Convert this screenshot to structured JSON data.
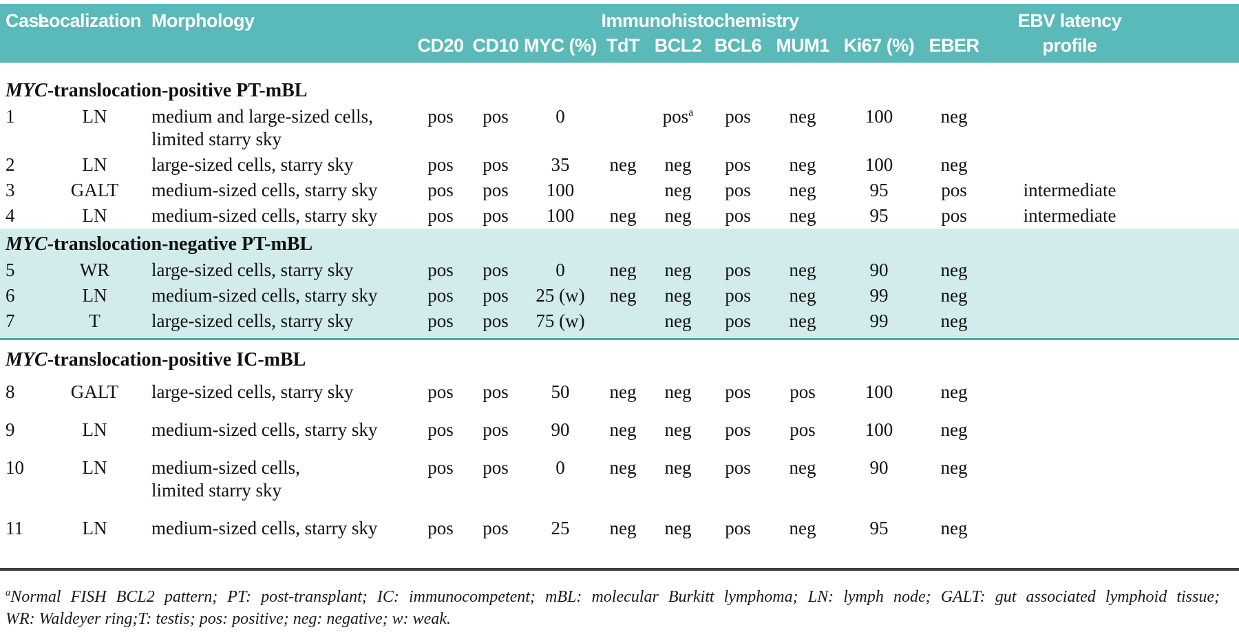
{
  "colors": {
    "header_teal": "#5ab9b9",
    "highlight_band": "#d2ebeb",
    "highlight_border": "#4aacac",
    "bottom_rule": "#3d3d3d",
    "text": "#111111",
    "header_text": "#ffffff"
  },
  "table": {
    "header": {
      "case": "Case",
      "localization": "Localization",
      "morphology": "Morphology",
      "ihc_group": "Immunohistochemistry",
      "ihc_columns": [
        "CD20",
        "CD10",
        "MYC (%)",
        "TdT",
        "BCL2",
        "BCL6",
        "MUM1",
        "Ki67 (%)",
        "EBER"
      ],
      "ebv_line1": "EBV latency",
      "ebv_line2": "profile"
    },
    "sections": [
      {
        "title_gene": "MYC",
        "title_rest": "-translocation-positive PT-mBL",
        "highlight": false,
        "wide_spacing": false,
        "rows": [
          {
            "case": "1",
            "localization": "LN",
            "morph1": "medium and large-sized cells,",
            "morph2": "limited starry sky",
            "cd20": "pos",
            "cd10": "pos",
            "myc": "0",
            "tdt": "",
            "bcl2": "pos",
            "bcl2_sup": "a",
            "bcl6": "pos",
            "mum1": "neg",
            "ki67": "100",
            "eber": "neg",
            "ebv": ""
          },
          {
            "case": "2",
            "localization": "LN",
            "morph1": "large-sized cells, starry sky",
            "morph2": "",
            "cd20": "pos",
            "cd10": "pos",
            "myc": "35",
            "tdt": "neg",
            "bcl2": "neg",
            "bcl2_sup": "",
            "bcl6": "pos",
            "mum1": "neg",
            "ki67": "100",
            "eber": "neg",
            "ebv": ""
          },
          {
            "case": "3",
            "localization": "GALT",
            "morph1": "medium-sized cells, starry sky",
            "morph2": "",
            "cd20": "pos",
            "cd10": "pos",
            "myc": "100",
            "tdt": "",
            "bcl2": "neg",
            "bcl2_sup": "",
            "bcl6": "pos",
            "mum1": "neg",
            "ki67": "95",
            "eber": "pos",
            "ebv": "intermediate"
          },
          {
            "case": "4",
            "localization": "LN",
            "morph1": "medium-sized cells, starry sky",
            "morph2": "",
            "cd20": "pos",
            "cd10": "pos",
            "myc": "100",
            "tdt": "neg",
            "bcl2": "neg",
            "bcl2_sup": "",
            "bcl6": "pos",
            "mum1": "neg",
            "ki67": "95",
            "eber": "pos",
            "ebv": "intermediate"
          }
        ]
      },
      {
        "title_gene": "MYC",
        "title_rest": "-translocation-negative PT-mBL",
        "highlight": true,
        "wide_spacing": false,
        "rows": [
          {
            "case": "5",
            "localization": "WR",
            "morph1": "large-sized cells, starry sky",
            "morph2": "",
            "cd20": "pos",
            "cd10": "pos",
            "myc": "0",
            "tdt": "neg",
            "bcl2": "neg",
            "bcl2_sup": "",
            "bcl6": "pos",
            "mum1": "neg",
            "ki67": "90",
            "eber": "neg",
            "ebv": ""
          },
          {
            "case": "6",
            "localization": "LN",
            "morph1": "medium-sized cells, starry sky",
            "morph2": "",
            "cd20": "pos",
            "cd10": "pos",
            "myc": "25 (w)",
            "tdt": "neg",
            "bcl2": "neg",
            "bcl2_sup": "",
            "bcl6": "pos",
            "mum1": "neg",
            "ki67": "99",
            "eber": "neg",
            "ebv": ""
          },
          {
            "case": "7",
            "localization": "T",
            "morph1": "large-sized cells, starry sky",
            "morph2": "",
            "cd20": "pos",
            "cd10": "pos",
            "myc": "75 (w)",
            "tdt": "",
            "bcl2": "neg",
            "bcl2_sup": "",
            "bcl6": "pos",
            "mum1": "neg",
            "ki67": "99",
            "eber": "neg",
            "ebv": ""
          }
        ]
      },
      {
        "title_gene": "MYC",
        "title_rest": "-translocation-positive IC-mBL",
        "highlight": false,
        "wide_spacing": true,
        "rows": [
          {
            "case": "8",
            "localization": "GALT",
            "morph1": "large-sized cells, starry sky",
            "morph2": "",
            "cd20": "pos",
            "cd10": "pos",
            "myc": "50",
            "tdt": "neg",
            "bcl2": "neg",
            "bcl2_sup": "",
            "bcl6": "pos",
            "mum1": "pos",
            "ki67": "100",
            "eber": "neg",
            "ebv": ""
          },
          {
            "case": "9",
            "localization": "LN",
            "morph1": "medium-sized cells, starry sky",
            "morph2": "",
            "cd20": "pos",
            "cd10": "pos",
            "myc": "90",
            "tdt": "neg",
            "bcl2": "neg",
            "bcl2_sup": "",
            "bcl6": "pos",
            "mum1": "pos",
            "ki67": "100",
            "eber": "neg",
            "ebv": ""
          },
          {
            "case": "10",
            "localization": "LN",
            "morph1": "medium-sized cells,",
            "morph2": "limited starry sky",
            "cd20": "pos",
            "cd10": "pos",
            "myc": "0",
            "tdt": "neg",
            "bcl2": "neg",
            "bcl2_sup": "",
            "bcl6": "pos",
            "mum1": "neg",
            "ki67": "90",
            "eber": "neg",
            "ebv": ""
          },
          {
            "case": "11",
            "localization": "LN",
            "morph1": "medium-sized cells, starry sky",
            "morph2": "",
            "cd20": "pos",
            "cd10": "pos",
            "myc": "25",
            "tdt": "neg",
            "bcl2": "neg",
            "bcl2_sup": "",
            "bcl6": "pos",
            "mum1": "neg",
            "ki67": "95",
            "eber": "neg",
            "ebv": ""
          }
        ]
      }
    ],
    "footnote": {
      "sup": "a",
      "line1": "Normal FISH BCL2 pattern; PT: post-transplant; IC: immunocompetent; mBL: molecular Burkitt lymphoma; LN: lymph node; GALT: gut associated lymphoid tissue;",
      "line2": "WR: Waldeyer ring;T: testis; pos: positive; neg: negative; w: weak."
    }
  }
}
